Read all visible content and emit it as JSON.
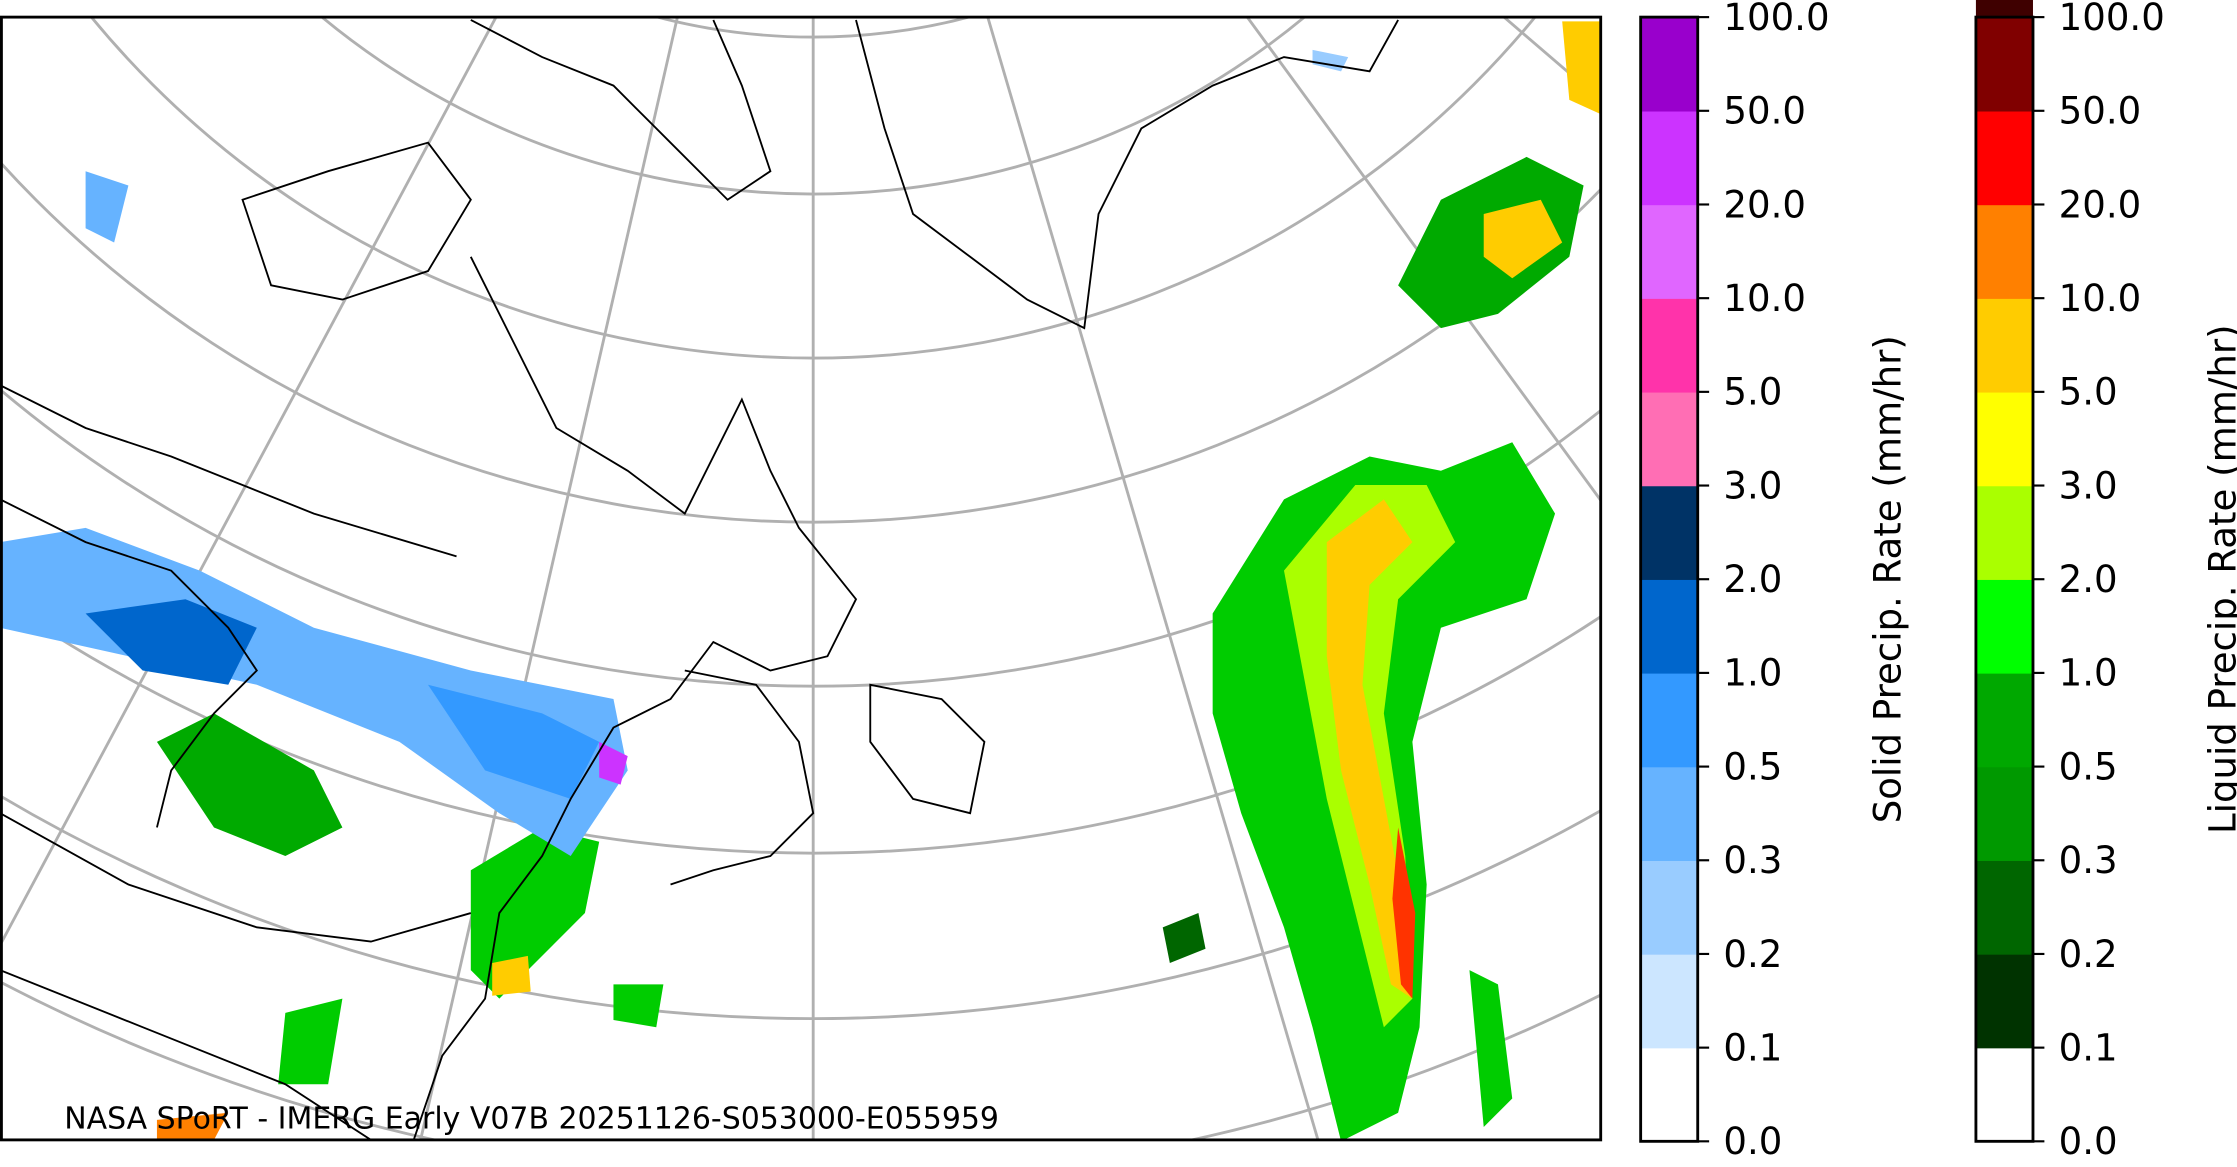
{
  "map": {
    "credit": "NASA SPoRT - IMERG Early V07B 20251126-S053000-E055959"
  },
  "colorbars": [
    {
      "label": "Solid Precip. Rate (mm/hr)",
      "ticks": [
        "0.0",
        "0.1",
        "0.2",
        "0.3",
        "0.5",
        "1.0",
        "2.0",
        "3.0",
        "5.0",
        "10.0",
        "20.0",
        "50.0",
        "100.0"
      ],
      "colors": [
        "#ffffff",
        "#cce6ff",
        "#99ccff",
        "#66b3ff",
        "#3399ff",
        "#0066cc",
        "#003366",
        "#ff6eb4",
        "#ff33aa",
        "#e066ff",
        "#cc33ff",
        "#9900cc"
      ]
    },
    {
      "label": "Liquid Precip. Rate (mm/hr)",
      "ticks": [
        "0.0",
        "0.1",
        "0.2",
        "0.3",
        "0.5",
        "1.0",
        "2.0",
        "3.0",
        "5.0",
        "10.0",
        "20.0",
        "50.0",
        "100.0"
      ],
      "colors": [
        "#ffffff",
        "#003300",
        "#006600",
        "#009900",
        "#00a800",
        "#00ff00",
        "#aaff00",
        "#ffff00",
        "#ffcc00",
        "#ff8000",
        "#ff0000",
        "#800000",
        "#3f0000"
      ]
    }
  ]
}
